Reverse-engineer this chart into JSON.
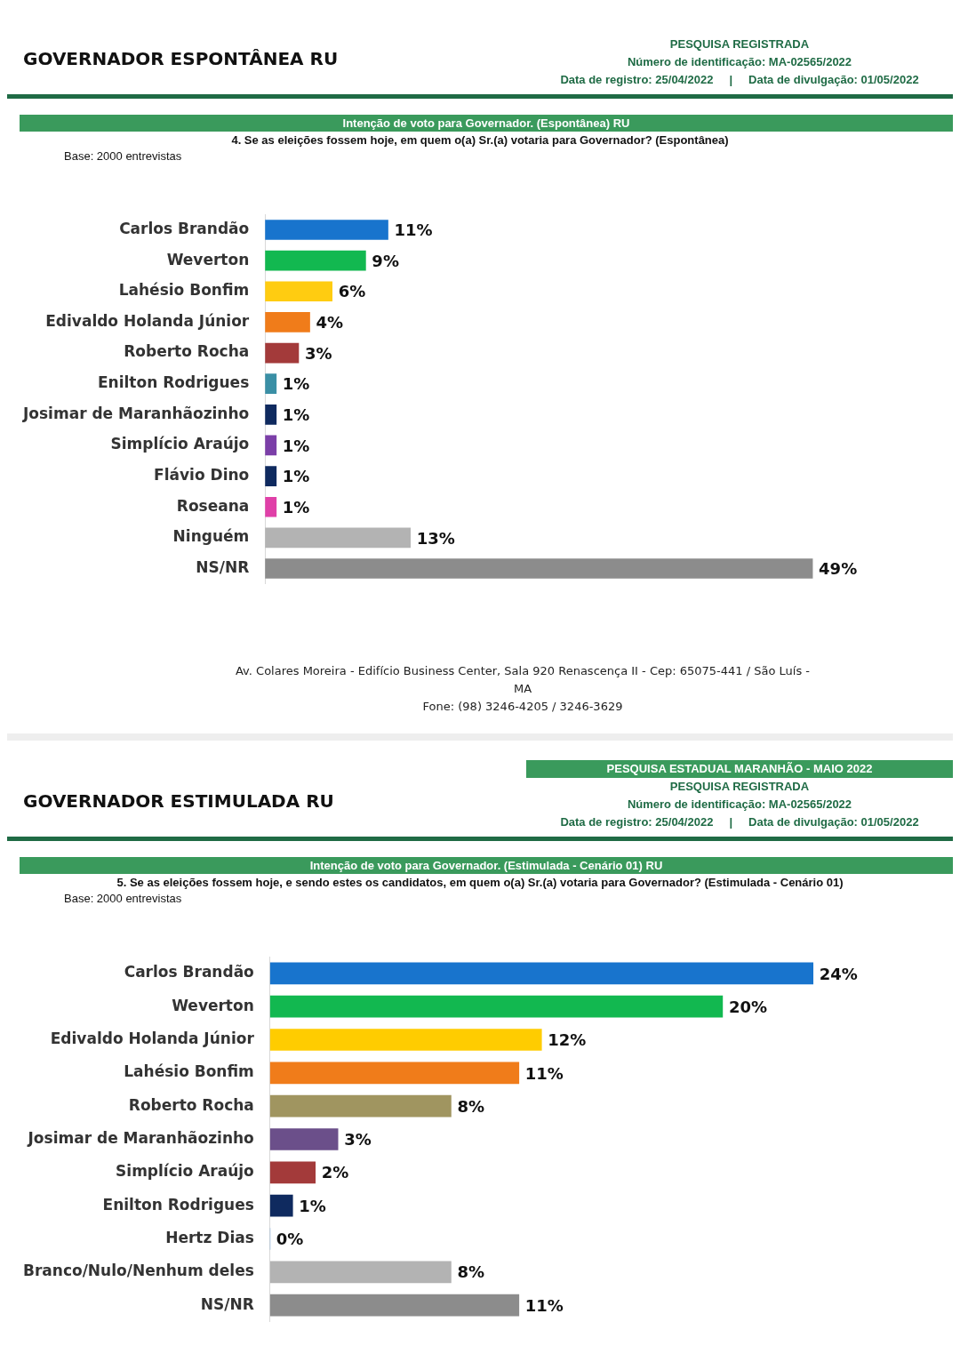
{
  "chart_data": [
    {
      "type": "bar",
      "orientation": "horizontal",
      "title": "Intenção de voto para Governador. (Espontânea) RU",
      "annotations": [
        "GOVERNADOR ESPONTÂNEA RU",
        "4. Se as eleições fossem hoje, em quem o(a) Sr.(a) votaria para Governador? (Espontânea)",
        "Base: 2000 entrevistas",
        "PESQUISA REGISTRADA",
        "Número de identificação: MA-02565/2022",
        "Data de registro: 25/04/2022     |     Data de divulgação: 01/05/2022",
        "Av. Colares Moreira - Edifício Business Center, Sala 920 Renascença II - Cep: 65075-441 / São Luís - MA",
        "Fone: (98) 3246-4205 / 3246-3629"
      ],
      "categories": [
        "Carlos Brandão",
        "Weverton",
        "Lahésio Bonfim",
        "Edivaldo Holanda Júnior",
        "Roberto Rocha",
        "Enilton Rodrigues",
        "Josimar de Maranhãozinho",
        "Simplício Araújo",
        "Flávio Dino",
        "Roseana",
        "Ninguém",
        "NS/NR"
      ],
      "values": [
        11,
        9,
        6,
        4,
        3,
        1,
        1,
        1,
        1,
        1,
        13,
        49
      ],
      "value_labels": [
        "11%",
        "9%",
        "6%",
        "4%",
        "3%",
        "1%",
        "1%",
        "1%",
        "1%",
        "1%",
        "13%",
        "49%"
      ],
      "colors": [
        "#1874cd",
        "#12b850",
        "#ffcc11",
        "#f07c1a",
        "#a33a3a",
        "#3a8fa5",
        "#0f2a5f",
        "#7b3fa8",
        "#0f2a5f",
        "#e040a8",
        "#b3b3b3",
        "#8c8c8c"
      ]
    },
    {
      "type": "bar",
      "orientation": "horizontal",
      "title": "Intenção de voto para Governador. (Estimulada - Cenário 01) RU",
      "subtitle": "PESQUISA ESTADUAL MARANHÃO - MAIO 2022",
      "annotations": [
        "GOVERNADOR ESTIMULADA RU",
        "5. Se as eleições fossem hoje, e sendo estes os candidatos, em quem o(a) Sr.(a) votaria para Governador? (Estimulada - Cenário 01)",
        "Base: 2000 entrevistas",
        "PESQUISA REGISTRADA",
        "Número de identificação: MA-02565/2022",
        "Data de registro: 25/04/2022     |     Data de divulgação: 01/05/2022"
      ],
      "categories": [
        "Carlos Brandão",
        "Weverton",
        "Edivaldo Holanda Júnior",
        "Lahésio Bonfim",
        "Roberto Rocha",
        "Josimar de Maranhãozinho",
        "Simplício Araújo",
        "Enilton Rodrigues",
        "Hertz Dias",
        "Branco/Nulo/Nenhum deles",
        "NS/NR"
      ],
      "values": [
        24,
        20,
        12,
        11,
        8,
        3,
        2,
        1,
        0,
        8,
        11
      ],
      "value_labels": [
        "24%",
        "20%",
        "12%",
        "11%",
        "8%",
        "3%",
        "2%",
        "1%",
        "0%",
        "8%",
        "11%"
      ],
      "colors": [
        "#1874cd",
        "#12b850",
        "#ffcc00",
        "#f07c1a",
        "#a09560",
        "#6b4f8a",
        "#a33a3a",
        "#0f2a5f",
        "#1874cd",
        "#b3b3b3",
        "#8c8c8c"
      ]
    }
  ]
}
